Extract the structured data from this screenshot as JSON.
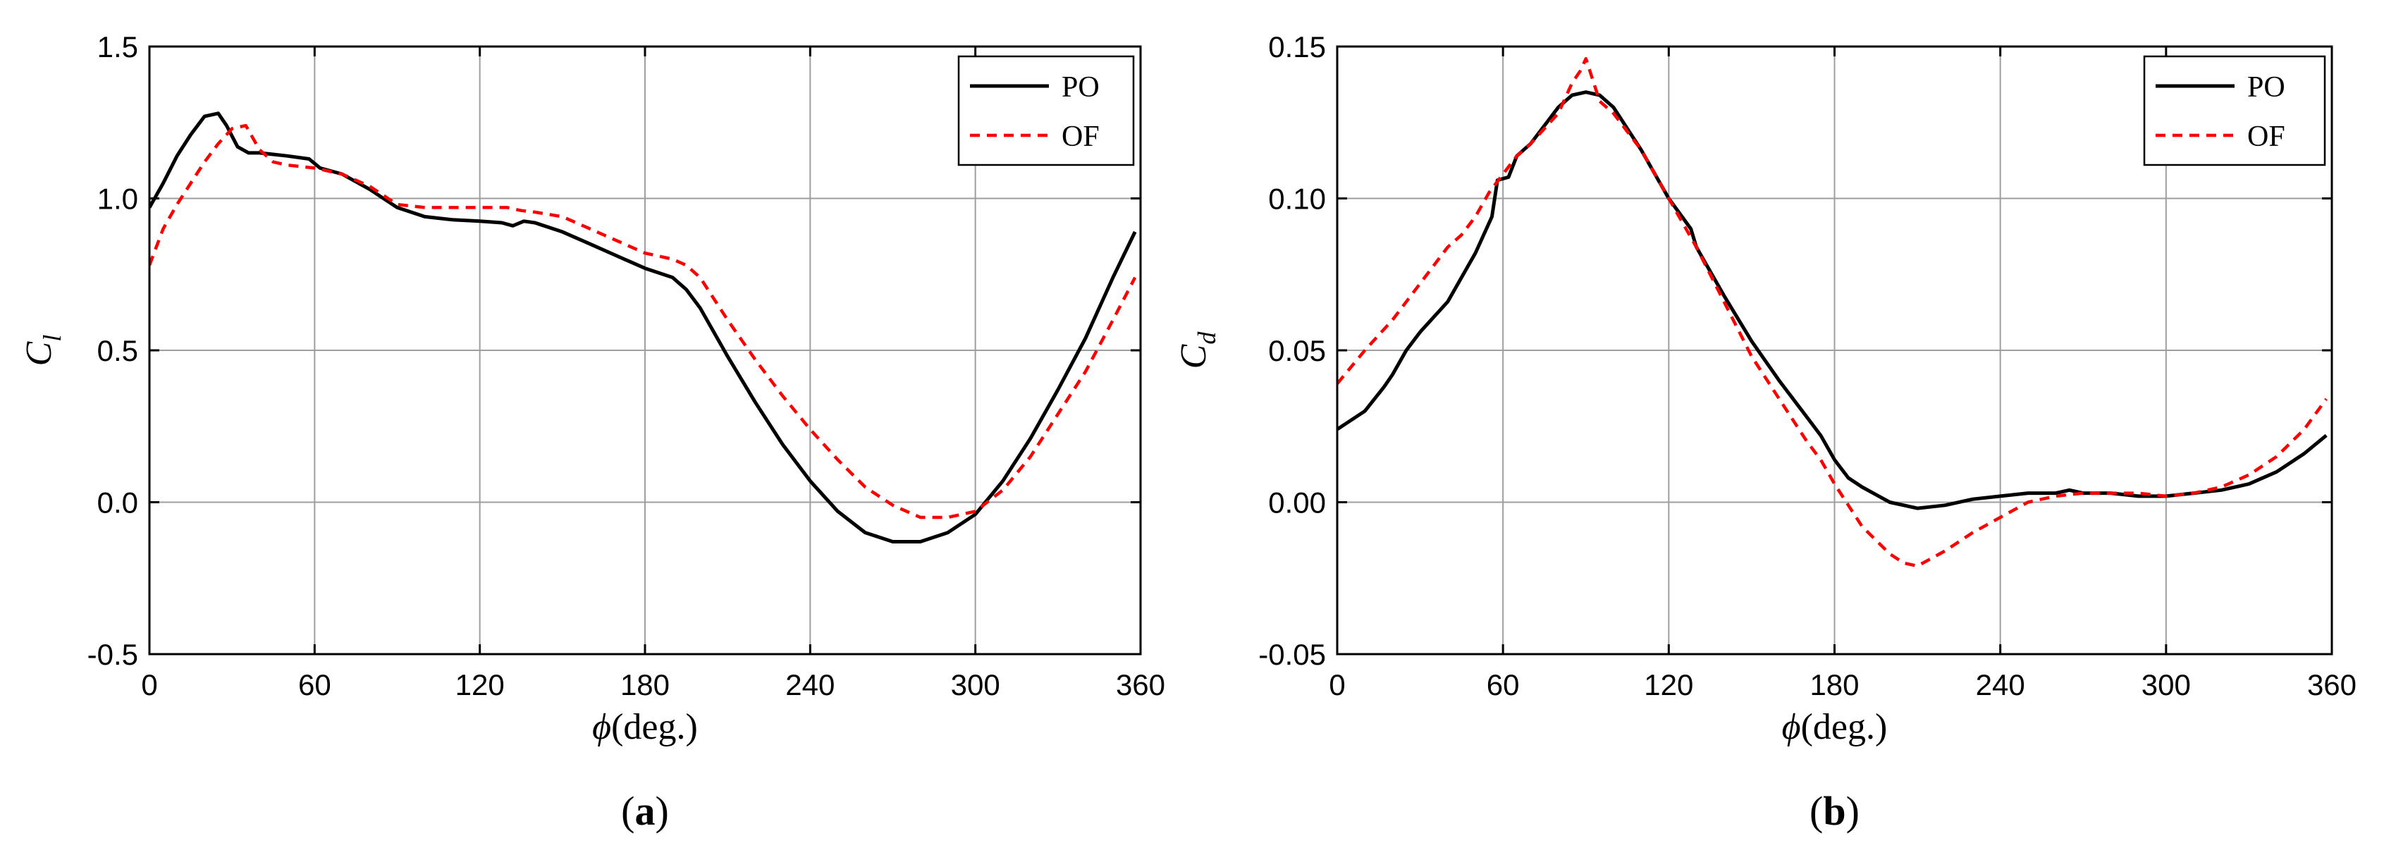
{
  "figure": {
    "series_names": [
      "PO",
      "OF"
    ],
    "series_colors": [
      "#000000",
      "#ff0000"
    ],
    "series_styles": [
      "solid",
      "dashed"
    ]
  },
  "chart_data": [
    {
      "type": "line",
      "panel_label": "(a)",
      "panel_letter": "a",
      "xlabel": "ϕ(deg.)",
      "xlabel_symbol": "ϕ",
      "xlabel_unit": "(deg.)",
      "ylabel": "Cl",
      "ylabel_symbol": "C",
      "ylabel_sub": "l",
      "xlim": [
        0,
        360
      ],
      "ylim": [
        -0.5,
        1.5
      ],
      "xticks": [
        0,
        60,
        120,
        180,
        240,
        300,
        360
      ],
      "xtick_labels": [
        "0",
        "60",
        "120",
        "180",
        "240",
        "300",
        "360"
      ],
      "yticks": [
        -0.5,
        0.0,
        0.5,
        1.0,
        1.5
      ],
      "ytick_labels": [
        "-0.5",
        "0.0",
        "0.5",
        "1.0",
        "1.5"
      ],
      "grid": true,
      "legend": "top-right",
      "series": [
        {
          "name": "PO",
          "x": [
            0,
            5,
            10,
            15,
            20,
            25,
            28,
            32,
            36,
            40,
            50,
            58,
            62,
            70,
            80,
            90,
            100,
            110,
            120,
            128,
            132,
            136,
            140,
            150,
            160,
            170,
            180,
            190,
            195,
            200,
            210,
            220,
            230,
            240,
            250,
            260,
            270,
            275,
            280,
            290,
            300,
            310,
            320,
            330,
            340,
            350,
            358
          ],
          "y": [
            0.97,
            1.05,
            1.14,
            1.21,
            1.27,
            1.28,
            1.24,
            1.17,
            1.15,
            1.15,
            1.14,
            1.13,
            1.1,
            1.08,
            1.03,
            0.97,
            0.94,
            0.93,
            0.925,
            0.92,
            0.91,
            0.925,
            0.92,
            0.89,
            0.85,
            0.81,
            0.77,
            0.74,
            0.7,
            0.64,
            0.48,
            0.33,
            0.19,
            0.07,
            -0.03,
            -0.1,
            -0.13,
            -0.13,
            -0.13,
            -0.1,
            -0.04,
            0.07,
            0.21,
            0.37,
            0.54,
            0.74,
            0.89
          ]
        },
        {
          "name": "OF",
          "x": [
            0,
            5,
            10,
            15,
            20,
            25,
            30,
            35,
            40,
            45,
            50,
            60,
            70,
            80,
            90,
            100,
            110,
            120,
            130,
            135,
            140,
            150,
            160,
            170,
            180,
            190,
            195,
            200,
            205,
            210,
            220,
            230,
            240,
            250,
            260,
            270,
            280,
            290,
            300,
            310,
            320,
            330,
            340,
            350,
            358
          ],
          "y": [
            0.78,
            0.9,
            0.98,
            1.05,
            1.12,
            1.18,
            1.23,
            1.24,
            1.16,
            1.12,
            1.11,
            1.1,
            1.08,
            1.04,
            0.98,
            0.97,
            0.97,
            0.97,
            0.97,
            0.96,
            0.955,
            0.94,
            0.9,
            0.86,
            0.82,
            0.8,
            0.78,
            0.74,
            0.67,
            0.6,
            0.47,
            0.35,
            0.24,
            0.14,
            0.05,
            -0.01,
            -0.05,
            -0.05,
            -0.03,
            0.04,
            0.15,
            0.29,
            0.43,
            0.6,
            0.74
          ]
        }
      ]
    },
    {
      "type": "line",
      "panel_label": "(b)",
      "panel_letter": "b",
      "xlabel": "ϕ(deg.)",
      "xlabel_symbol": "ϕ",
      "xlabel_unit": "(deg.)",
      "ylabel": "Cd",
      "ylabel_symbol": "C",
      "ylabel_sub": "d",
      "xlim": [
        0,
        360
      ],
      "ylim": [
        -0.05,
        0.15
      ],
      "xticks": [
        0,
        60,
        120,
        180,
        240,
        300,
        360
      ],
      "xtick_labels": [
        "0",
        "60",
        "120",
        "180",
        "240",
        "300",
        "360"
      ],
      "yticks": [
        -0.05,
        0.0,
        0.05,
        0.1,
        0.15
      ],
      "ytick_labels": [
        "-0.05",
        "0.00",
        "0.05",
        "0.10",
        "0.15"
      ],
      "grid": true,
      "legend": "top-right",
      "series": [
        {
          "name": "PO",
          "x": [
            0,
            10,
            17,
            20,
            25,
            30,
            40,
            50,
            56,
            58,
            62,
            65,
            70,
            75,
            80,
            85,
            90,
            95,
            100,
            110,
            120,
            128,
            130,
            140,
            150,
            160,
            170,
            175,
            180,
            185,
            190,
            200,
            210,
            220,
            230,
            240,
            250,
            260,
            265,
            270,
            280,
            290,
            300,
            310,
            320,
            330,
            340,
            350,
            358
          ],
          "y": [
            0.024,
            0.03,
            0.038,
            0.042,
            0.05,
            0.056,
            0.066,
            0.082,
            0.094,
            0.106,
            0.107,
            0.114,
            0.118,
            0.124,
            0.13,
            0.134,
            0.135,
            0.134,
            0.13,
            0.116,
            0.1,
            0.09,
            0.084,
            0.068,
            0.053,
            0.04,
            0.028,
            0.022,
            0.014,
            0.008,
            0.005,
            0.0,
            -0.002,
            -0.001,
            0.001,
            0.002,
            0.003,
            0.003,
            0.004,
            0.003,
            0.003,
            0.002,
            0.002,
            0.003,
            0.004,
            0.006,
            0.01,
            0.016,
            0.022
          ]
        },
        {
          "name": "OF",
          "x": [
            0,
            10,
            20,
            30,
            40,
            45,
            50,
            55,
            60,
            65,
            70,
            80,
            85,
            88,
            90,
            95,
            100,
            110,
            120,
            130,
            140,
            150,
            160,
            170,
            175,
            180,
            190,
            200,
            205,
            210,
            220,
            230,
            240,
            250,
            260,
            270,
            280,
            290,
            300,
            310,
            320,
            330,
            340,
            350,
            358
          ],
          "y": [
            0.039,
            0.05,
            0.06,
            0.072,
            0.084,
            0.088,
            0.094,
            0.102,
            0.108,
            0.114,
            0.118,
            0.128,
            0.138,
            0.142,
            0.146,
            0.132,
            0.128,
            0.116,
            0.1,
            0.084,
            0.066,
            0.048,
            0.034,
            0.02,
            0.014,
            0.006,
            -0.008,
            -0.017,
            -0.02,
            -0.021,
            -0.016,
            -0.01,
            -0.005,
            0.0,
            0.002,
            0.003,
            0.003,
            0.003,
            0.002,
            0.003,
            0.005,
            0.009,
            0.015,
            0.024,
            0.034
          ]
        }
      ]
    }
  ]
}
